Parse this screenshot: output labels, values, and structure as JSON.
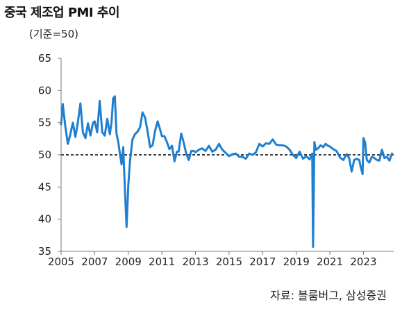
{
  "title": "중국 제조업 PMI 추이",
  "subtitle": "(기준=50)",
  "source": "자료: 블룸버그, 삼성증권",
  "chart_data": {
    "type": "line",
    "title": "중국 제조업 PMI 추이",
    "subtitle": "(기준=50)",
    "xlabel": "",
    "ylabel": "",
    "xlim": [
      2005.0,
      2024.8
    ],
    "ylim": [
      35,
      65
    ],
    "yticks": [
      35,
      40,
      45,
      50,
      55,
      60,
      65
    ],
    "xticks": [
      2005,
      2007,
      2009,
      2011,
      2013,
      2015,
      2017,
      2019,
      2021,
      2023
    ],
    "reference_line": {
      "value": 50,
      "style": "dashed"
    },
    "grid": false,
    "legend": "none",
    "color": "#1f7fd0",
    "series": [
      {
        "x": [
          2005.0,
          2005.1,
          2005.25,
          2005.4,
          2005.55,
          2005.7,
          2005.85,
          2006.0,
          2006.15,
          2006.3,
          2006.45,
          2006.6,
          2006.75,
          2006.9,
          2007.0,
          2007.15,
          2007.3,
          2007.45,
          2007.6,
          2007.75,
          2007.9,
          2008.0,
          2008.1,
          2008.2,
          2008.3,
          2008.4,
          2008.5,
          2008.6,
          2008.7,
          2008.8,
          2008.9,
          2009.0,
          2009.1,
          2009.25,
          2009.4,
          2009.55,
          2009.7,
          2009.85,
          2010.0,
          2010.15,
          2010.3,
          2010.45,
          2010.6,
          2010.75,
          2010.9,
          2011.0,
          2011.15,
          2011.3,
          2011.45,
          2011.6,
          2011.75,
          2011.9,
          2012.0,
          2012.15,
          2012.3,
          2012.45,
          2012.6,
          2012.75,
          2012.9,
          2013.0,
          2013.2,
          2013.4,
          2013.6,
          2013.8,
          2014.0,
          2014.2,
          2014.4,
          2014.6,
          2014.8,
          2015.0,
          2015.2,
          2015.4,
          2015.6,
          2015.8,
          2016.0,
          2016.2,
          2016.4,
          2016.6,
          2016.8,
          2017.0,
          2017.2,
          2017.4,
          2017.6,
          2017.8,
          2018.0,
          2018.2,
          2018.4,
          2018.6,
          2018.8,
          2019.0,
          2019.2,
          2019.4,
          2019.6,
          2019.8,
          2019.95,
          2020.0,
          2020.08,
          2020.17,
          2020.3,
          2020.45,
          2020.6,
          2020.75,
          2020.9,
          2021.0,
          2021.2,
          2021.4,
          2021.6,
          2021.8,
          2022.0,
          2022.15,
          2022.3,
          2022.45,
          2022.6,
          2022.75,
          2022.85,
          2022.95,
          2023.0,
          2023.1,
          2023.2,
          2023.35,
          2023.5,
          2023.65,
          2023.8,
          2023.95,
          2024.1,
          2024.25,
          2024.4,
          2024.55,
          2024.7
        ],
        "values": [
          54.7,
          57.9,
          54.5,
          51.7,
          53.2,
          55.0,
          52.8,
          55.1,
          58.0,
          53.5,
          52.6,
          54.9,
          53.0,
          55.0,
          55.2,
          53.5,
          58.4,
          53.5,
          53.0,
          55.6,
          53.2,
          55.0,
          58.8,
          59.1,
          53.3,
          52.0,
          50.2,
          48.5,
          51.2,
          44.6,
          38.8,
          45.3,
          49.0,
          52.4,
          53.2,
          53.6,
          54.3,
          56.6,
          55.8,
          53.6,
          51.2,
          51.5,
          53.8,
          55.2,
          53.9,
          52.9,
          52.9,
          52.0,
          50.9,
          51.4,
          49.0,
          50.5,
          50.5,
          53.3,
          51.9,
          50.2,
          49.2,
          50.6,
          50.6,
          50.4,
          50.8,
          51.0,
          50.6,
          51.4,
          50.5,
          50.8,
          51.7,
          50.8,
          50.3,
          49.8,
          50.1,
          50.2,
          49.7,
          49.7,
          49.4,
          50.2,
          50.0,
          50.4,
          51.7,
          51.3,
          51.8,
          51.7,
          52.4,
          51.6,
          51.5,
          51.5,
          51.3,
          50.8,
          50.0,
          49.5,
          50.5,
          49.4,
          49.8,
          49.3,
          50.2,
          35.7,
          52.0,
          50.8,
          51.0,
          51.5,
          51.2,
          51.7,
          51.4,
          51.3,
          50.9,
          50.6,
          49.6,
          49.2,
          50.1,
          49.5,
          47.4,
          49.2,
          49.4,
          49.2,
          48.0,
          47.0,
          52.6,
          51.9,
          49.2,
          48.8,
          49.7,
          49.5,
          49.2,
          49.1,
          50.8,
          49.5,
          49.7,
          49.1,
          50.2
        ]
      }
    ]
  }
}
